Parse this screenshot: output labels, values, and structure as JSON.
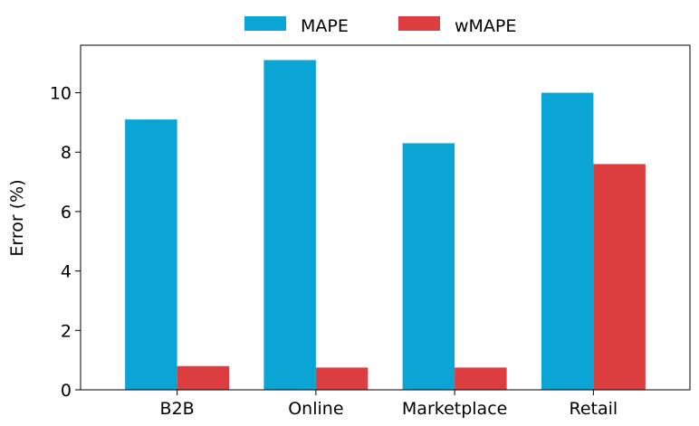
{
  "chart_data": {
    "type": "bar",
    "categories": [
      "B2B",
      "Online",
      "Marketplace",
      "Retail"
    ],
    "series": [
      {
        "name": "MAPE",
        "color": "#0aa5d5",
        "values": [
          9.1,
          11.1,
          8.3,
          10.0
        ]
      },
      {
        "name": "wMAPE",
        "color": "#dc3e3f",
        "values": [
          0.8,
          0.75,
          0.75,
          7.6
        ]
      }
    ],
    "title": "",
    "xlabel": "",
    "ylabel": "Error (%)",
    "ylim": [
      0,
      11.6
    ],
    "yticks": [
      0,
      2,
      4,
      6,
      8,
      10
    ],
    "grid": false,
    "legend": "top-center"
  }
}
